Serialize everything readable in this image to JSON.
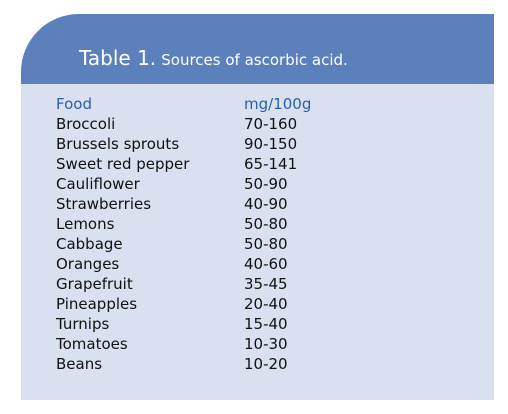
{
  "table": {
    "label": "Table 1.",
    "caption": "Sources of ascorbic acid.",
    "columns": [
      "Food",
      "mg/100g"
    ],
    "rows": [
      [
        "Broccoli",
        "70-160"
      ],
      [
        "Brussels sprouts",
        "90-150"
      ],
      [
        "Sweet red pepper",
        "65-141"
      ],
      [
        "Cauliflower",
        "50-90"
      ],
      [
        "Strawberries",
        "40-90"
      ],
      [
        "Lemons",
        "50-80"
      ],
      [
        "Cabbage",
        "50-80"
      ],
      [
        "Oranges",
        "40-60"
      ],
      [
        "Grapefruit",
        "35-45"
      ],
      [
        "Pineapples",
        "20-40"
      ],
      [
        "Turnips",
        "15-40"
      ],
      [
        "Tomatoes",
        "10-30"
      ],
      [
        "Beans",
        "10-20"
      ]
    ]
  },
  "colors": {
    "header_bg": "#5b80bb",
    "panel_bg": "#d9e0ef",
    "column_header_text": "#2b5fa6"
  }
}
